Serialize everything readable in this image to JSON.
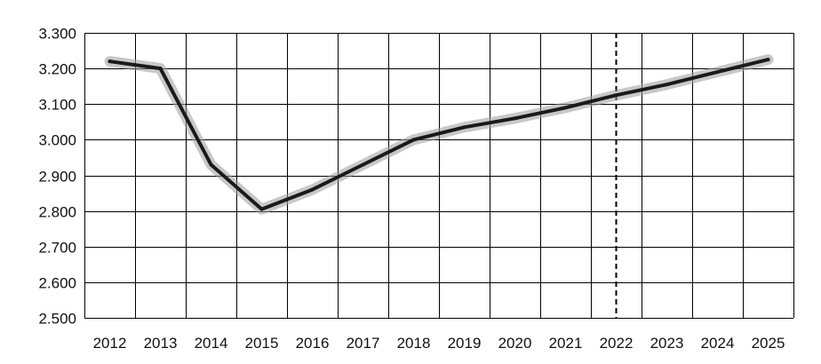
{
  "chart_data": {
    "type": "line",
    "x": [
      "2012",
      "2013",
      "2014",
      "2015",
      "2016",
      "2017",
      "2018",
      "2019",
      "2020",
      "2021",
      "2022",
      "2023",
      "2024",
      "2025"
    ],
    "series": [
      {
        "values": [
          3.22,
          3.2,
          2.93,
          2.805,
          2.86,
          2.93,
          3.0,
          3.035,
          3.06,
          3.09,
          3.125,
          3.155,
          3.19,
          3.225
        ]
      }
    ],
    "y_ticks": [
      "2.500",
      "2.600",
      "2.700",
      "2.800",
      "2.900",
      "3.000",
      "3.100",
      "3.200",
      "3.300"
    ],
    "ylim": [
      2.5,
      3.3
    ],
    "grid": true,
    "reference_line_x": "2022",
    "colors": {
      "line": "#1a1a1a",
      "grid": "#000000"
    }
  }
}
